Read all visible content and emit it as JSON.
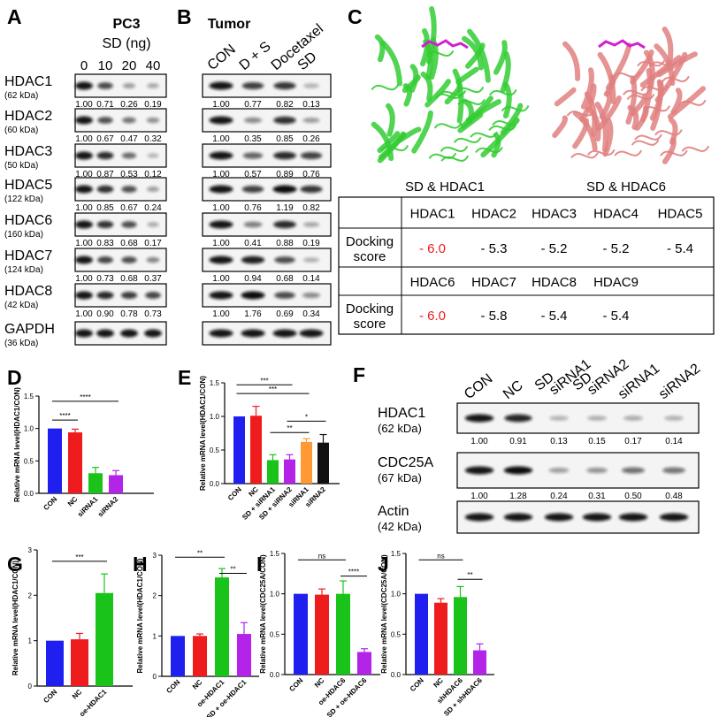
{
  "colors": {
    "blue": "#1f1ff0",
    "red": "#ee1c1c",
    "green": "#19c319",
    "purple": "#b324e8",
    "orange": "#ff9933",
    "black": "#111111",
    "protein1": "#33cc33",
    "protein6": "#e08080",
    "ligand": "#d020d0"
  },
  "panelA": {
    "letter": "A",
    "title": "PC3",
    "subtitle": "SD (ng)",
    "columns": [
      "0",
      "10",
      "20",
      "40"
    ],
    "rows": [
      {
        "name": "HDAC1",
        "kda": "(62 kDa)",
        "values": [
          "1.00",
          "0.71",
          "0.26",
          "0.19"
        ],
        "levels": [
          1.0,
          0.71,
          0.26,
          0.19
        ]
      },
      {
        "name": "HDAC2",
        "kda": "(60 kDa)",
        "values": [
          "1.00",
          "0.67",
          "0.47",
          "0.32"
        ],
        "levels": [
          1.0,
          0.67,
          0.47,
          0.32
        ]
      },
      {
        "name": "HDAC3",
        "kda": "(50 kDa)",
        "values": [
          "1.00",
          "0.87",
          "0.53",
          "0.12"
        ],
        "levels": [
          1.0,
          0.87,
          0.53,
          0.12
        ]
      },
      {
        "name": "HDAC5",
        "kda": "(122 kDa)",
        "values": [
          "1.00",
          "0.85",
          "0.67",
          "0.24"
        ],
        "levels": [
          1.0,
          0.85,
          0.67,
          0.24
        ]
      },
      {
        "name": "HDAC6",
        "kda": "(160 kDa)",
        "values": [
          "1.00",
          "0.83",
          "0.68",
          "0.17"
        ],
        "levels": [
          1.0,
          0.83,
          0.68,
          0.17
        ]
      },
      {
        "name": "HDAC7",
        "kda": "(124 kDa)",
        "values": [
          "1.00",
          "0.73",
          "0.68",
          "0.37"
        ],
        "levels": [
          1.0,
          0.73,
          0.68,
          0.37
        ]
      },
      {
        "name": "HDAC8",
        "kda": "(42 kDa)",
        "values": [
          "1.00",
          "0.90",
          "0.78",
          "0.73"
        ],
        "levels": [
          1.0,
          0.9,
          0.78,
          0.73
        ]
      },
      {
        "name": "GAPDH",
        "kda": "(36 kDa)",
        "values": [],
        "levels": [
          1,
          1,
          1,
          1
        ]
      }
    ]
  },
  "panelB": {
    "letter": "B",
    "title": "Tumor",
    "columns": [
      "CON",
      "D + S",
      "Docetaxel",
      "SD"
    ],
    "rows": [
      {
        "values": [
          "1.00",
          "0.77",
          "0.82",
          "0.13"
        ],
        "levels": [
          1.0,
          0.77,
          0.82,
          0.13
        ]
      },
      {
        "values": [
          "1.00",
          "0.35",
          "0.85",
          "0.26"
        ],
        "levels": [
          1.0,
          0.35,
          0.85,
          0.26
        ]
      },
      {
        "values": [
          "1.00",
          "0.57",
          "0.89",
          "0.76"
        ],
        "levels": [
          1.0,
          0.57,
          0.89,
          0.76
        ]
      },
      {
        "values": [
          "1.00",
          "0.76",
          "1.19",
          "0.82"
        ],
        "levels": [
          1.0,
          0.76,
          1.19,
          0.82
        ]
      },
      {
        "values": [
          "1.00",
          "0.41",
          "0.88",
          "0.19"
        ],
        "levels": [
          1.0,
          0.41,
          0.88,
          0.19
        ]
      },
      {
        "values": [
          "1.00",
          "0.94",
          "0.68",
          "0.14"
        ],
        "levels": [
          1.0,
          0.94,
          0.68,
          0.14
        ]
      },
      {
        "values": [
          "1.00",
          "1.76",
          "0.69",
          "0.34"
        ],
        "levels": [
          1.0,
          1.76,
          0.69,
          0.34
        ]
      },
      {
        "values": [],
        "levels": [
          1,
          1,
          1,
          1
        ]
      }
    ]
  },
  "panelC": {
    "letter": "C",
    "labels": [
      "SD & HDAC1",
      "SD & HDAC6"
    ],
    "table": [
      {
        "headers": [
          "HDAC1",
          "HDAC2",
          "HDAC3",
          "HDAC4",
          "HDAC5"
        ],
        "rowLabel": "Docking score",
        "scores": [
          "- 6.0",
          "- 5.3",
          "- 5.2",
          "- 5.2",
          "- 5.4"
        ],
        "highlight": [
          true,
          false,
          false,
          false,
          false
        ]
      },
      {
        "headers": [
          "HDAC6",
          "HDAC7",
          "HDAC8",
          "HDAC9",
          ""
        ],
        "rowLabel": "Docking score",
        "scores": [
          "- 6.0",
          "- 5.8",
          "- 5.4",
          "- 5.4",
          ""
        ],
        "highlight": [
          true,
          false,
          false,
          false,
          false
        ]
      }
    ]
  },
  "panelF": {
    "letter": "F",
    "columns": [
      "CON",
      "NC",
      "SD siRNA1",
      "SD siRNA2",
      "siRNA1",
      "siRNA2"
    ],
    "rows": [
      {
        "name": "HDAC1",
        "kda": "(62 kDa)",
        "values": [
          "1.00",
          "0.91",
          "0.13",
          "0.15",
          "0.17",
          "0.14"
        ],
        "levels": [
          1.0,
          0.91,
          0.13,
          0.15,
          0.17,
          0.14
        ]
      },
      {
        "name": "CDC25A",
        "kda": "(67 kDa)",
        "values": [
          "1.00",
          "1.28",
          "0.24",
          "0.31",
          "0.50",
          "0.48"
        ],
        "levels": [
          1.0,
          1.28,
          0.24,
          0.31,
          0.5,
          0.48
        ]
      },
      {
        "name": "Actin",
        "kda": "(42 kDa)",
        "values": [],
        "levels": [
          1,
          1,
          1,
          1,
          1,
          1
        ]
      }
    ]
  },
  "chart_data": [
    {
      "panel": "D",
      "type": "bar",
      "ylabel": "Relative mRNA level(HDAC1/CON)",
      "ylim": [
        0,
        1.5
      ],
      "ticks": [
        "0.0",
        "0.5",
        "1.0",
        "1.5"
      ],
      "categories": [
        "CON",
        "NC",
        "siRNA1",
        "siRNA2"
      ],
      "values": [
        1.0,
        0.94,
        0.31,
        0.28
      ],
      "errors": [
        0,
        0.05,
        0.09,
        0.07
      ],
      "colors": [
        "#1f1ff0",
        "#ee1c1c",
        "#19c319",
        "#b324e8"
      ],
      "sig": [
        {
          "from": 0,
          "to": 3,
          "level": 1.42,
          "label": "****"
        },
        {
          "from": 0,
          "to": 1,
          "level": 1.13,
          "label": "****"
        }
      ]
    },
    {
      "panel": "E",
      "type": "bar",
      "ylabel": "Relative mRNA level(HDAC1/CON)",
      "ylim": [
        0,
        1.5
      ],
      "ticks": [
        "0.0",
        "0.5",
        "1.0",
        "1.5"
      ],
      "categories": [
        "CON",
        "NC",
        "SD + siRNA1",
        "SD + siRNA2",
        "siRNA1",
        "siRNA2"
      ],
      "values": [
        1.0,
        1.01,
        0.35,
        0.36,
        0.62,
        0.61
      ],
      "errors": [
        0,
        0.14,
        0.08,
        0.07,
        0.05,
        0.12
      ],
      "colors": [
        "#1f1ff0",
        "#ee1c1c",
        "#19c319",
        "#b324e8",
        "#ff9933",
        "#111111"
      ],
      "sig": [
        {
          "from": 0,
          "to": 3,
          "level": 1.47,
          "label": "***"
        },
        {
          "from": 0,
          "to": 4,
          "level": 1.34,
          "label": "***"
        },
        {
          "from": 3,
          "to": 5,
          "level": 0.93,
          "label": "*"
        },
        {
          "from": 2,
          "to": 4,
          "level": 0.76,
          "label": "**"
        }
      ]
    },
    {
      "panel": "G",
      "type": "bar",
      "ylabel": "Relative mRNA level(HDAC1/CON)",
      "ylim": [
        0,
        3
      ],
      "ticks": [
        "0",
        "1",
        "2",
        "3"
      ],
      "categories": [
        "CON",
        "NC",
        "oe-HDAC1"
      ],
      "values": [
        1.0,
        1.03,
        2.05
      ],
      "errors": [
        0,
        0.13,
        0.42
      ],
      "colors": [
        "#1f1ff0",
        "#ee1c1c",
        "#19c319"
      ],
      "sig": [
        {
          "from": 0,
          "to": 2,
          "level": 2.75,
          "label": "***"
        }
      ]
    },
    {
      "panel": "H",
      "type": "bar",
      "ylabel": "Relative mRNA level(HDAC1/CON)",
      "ylim": [
        0,
        3
      ],
      "ticks": [
        "0",
        "1",
        "2",
        "3"
      ],
      "categories": [
        "CON",
        "NC",
        "oe-HDAC1",
        "SD + oe-HDAC1"
      ],
      "values": [
        1.0,
        1.0,
        2.45,
        1.05
      ],
      "errors": [
        0,
        0.05,
        0.22,
        0.28
      ],
      "colors": [
        "#1f1ff0",
        "#ee1c1c",
        "#19c319",
        "#b324e8"
      ],
      "sig": [
        {
          "from": 0,
          "to": 2,
          "level": 2.95,
          "label": "**"
        },
        {
          "from": 2,
          "to": 3,
          "level": 2.55,
          "label": "**"
        }
      ]
    },
    {
      "panel": "I",
      "type": "bar",
      "ylabel": "Relative mRNA level(CDC25A/CON)",
      "ylim": [
        0,
        1.5
      ],
      "ticks": [
        "0.0",
        "0.5",
        "1.0",
        "1.5"
      ],
      "categories": [
        "CON",
        "NC",
        "oe-HDAC6",
        "SD + oe-HDAC6"
      ],
      "values": [
        1.0,
        0.99,
        1.0,
        0.28
      ],
      "errors": [
        0,
        0.07,
        0.16,
        0.04
      ],
      "colors": [
        "#1f1ff0",
        "#ee1c1c",
        "#19c319",
        "#b324e8"
      ],
      "sig": [
        {
          "from": 0,
          "to": 2,
          "level": 1.42,
          "label": "ns"
        },
        {
          "from": 2,
          "to": 3,
          "level": 1.22,
          "label": "****"
        }
      ]
    },
    {
      "panel": "J",
      "type": "bar",
      "ylabel": "Relative mRNA level(CDC25A/CON)",
      "ylim": [
        0,
        1.5
      ],
      "ticks": [
        "0.0",
        "0.5",
        "1.0",
        "1.5"
      ],
      "categories": [
        "CON",
        "NC",
        "shHDAC6",
        "SD + shHDAC6"
      ],
      "values": [
        1.0,
        0.89,
        0.96,
        0.3
      ],
      "errors": [
        0,
        0.05,
        0.13,
        0.08
      ],
      "colors": [
        "#1f1ff0",
        "#ee1c1c",
        "#19c319",
        "#b324e8"
      ],
      "sig": [
        {
          "from": 0,
          "to": 2,
          "level": 1.42,
          "label": "ns"
        },
        {
          "from": 2,
          "to": 3,
          "level": 1.18,
          "label": "**"
        }
      ]
    }
  ]
}
